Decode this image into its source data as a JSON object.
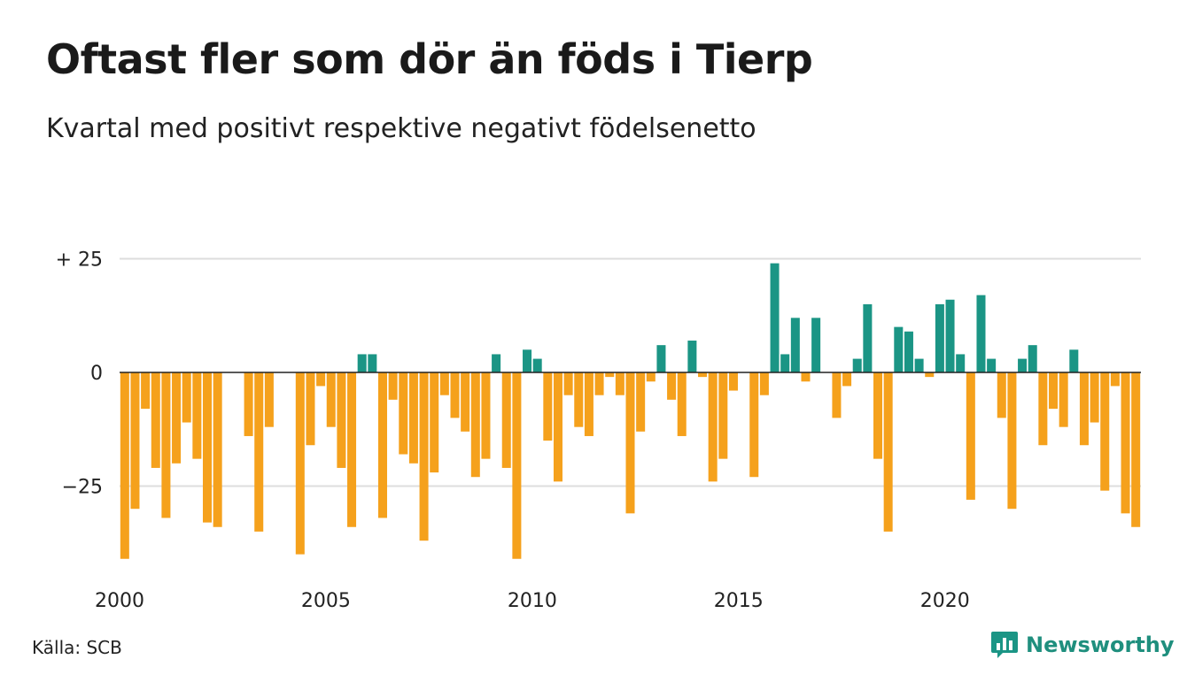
{
  "title": "Oftast fler som dör än föds i Tierp",
  "subtitle": "Kvartal med positivt respektive negativt födelsenetto",
  "source": "Källa: SCB",
  "brand": {
    "name": "Newsworthy",
    "icon": "bar-chart-speech-bubble-icon"
  },
  "colors": {
    "positive": "#1b9585",
    "negative": "#f5a11c",
    "grid": "#dddddd",
    "zero_line": "#222222"
  },
  "chart_data": {
    "type": "bar",
    "title": "Oftast fler som dör än föds i Tierp",
    "subtitle": "Kvartal med positivt respektive negativt födelsenetto",
    "x_start": "2000 Q1",
    "ylim": [
      -42,
      25
    ],
    "y_ticks": [
      {
        "value": 25,
        "label": "+ 25"
      },
      {
        "value": 0,
        "label": "0"
      },
      {
        "value": -25,
        "label": "−25"
      }
    ],
    "x_ticks": [
      "2000",
      "2005",
      "2010",
      "2015",
      "2020"
    ],
    "x_tick_quarter_index": [
      0,
      20,
      40,
      60,
      80
    ],
    "grid": true,
    "values": [
      -41,
      -30,
      -8,
      -21,
      -32,
      -20,
      -11,
      -19,
      -33,
      -34,
      0,
      0,
      -14,
      -35,
      -12,
      0,
      0,
      -40,
      -16,
      -3,
      -12,
      -21,
      -34,
      4,
      4,
      -32,
      -6,
      -18,
      -20,
      -37,
      -22,
      -5,
      -10,
      -13,
      -23,
      -19,
      4,
      -21,
      -41,
      5,
      3,
      -15,
      -24,
      -5,
      -12,
      -14,
      -5,
      -1,
      -5,
      -31,
      -13,
      -2,
      6,
      -6,
      -14,
      7,
      -1,
      -24,
      -19,
      -4,
      0,
      -23,
      -5,
      24,
      4,
      12,
      -2,
      12,
      0,
      -10,
      -3,
      3,
      15,
      -19,
      -35,
      10,
      9,
      3,
      -1,
      15,
      16,
      4,
      -28,
      17,
      3,
      -10,
      -30,
      3,
      6,
      -16,
      -8,
      -12,
      5,
      -16,
      -11,
      -26,
      -3,
      -31,
      -34
    ]
  }
}
